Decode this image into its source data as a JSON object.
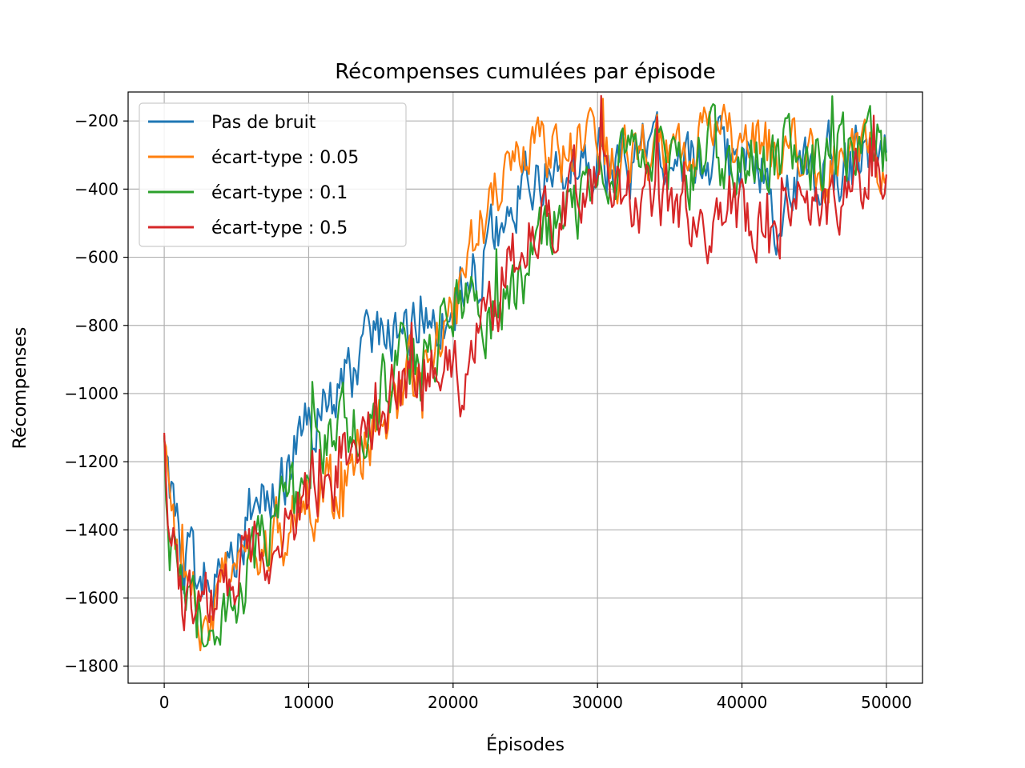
{
  "chart_data": {
    "type": "line",
    "title": "Récompenses cumulées par épisode",
    "xlabel": "Épisodes",
    "ylabel": "Récompenses",
    "xlim": [
      -2500,
      52500
    ],
    "ylim": [
      -1850,
      -115
    ],
    "xticks": [
      0,
      10000,
      20000,
      30000,
      40000,
      50000
    ],
    "xtick_labels": [
      "0",
      "10000",
      "20000",
      "30000",
      "40000",
      "50000"
    ],
    "yticks": [
      -1800,
      -1600,
      -1400,
      -1200,
      -1000,
      -800,
      -600,
      -400,
      -200
    ],
    "ytick_labels": [
      "−1800",
      "−1600",
      "−1400",
      "−1200",
      "−1000",
      "−800",
      "−600",
      "−400",
      "−200"
    ],
    "grid": true,
    "legend_position": "top-left",
    "series": [
      {
        "name": "Pas de bruit",
        "color": "#1f77b4",
        "noise": 85,
        "x": [
          0,
          300,
          800,
          1500,
          2500,
          3500,
          4500,
          6000,
          8000,
          9500,
          12000,
          14000,
          16000,
          18000,
          20000,
          22000,
          24000,
          26000,
          28000,
          30000,
          32000,
          35000,
          38000,
          40000,
          42000,
          42700,
          43500,
          45000,
          47000,
          50000
        ],
        "y": [
          -1180,
          -1300,
          -1400,
          -1500,
          -1560,
          -1560,
          -1450,
          -1330,
          -1250,
          -1150,
          -1000,
          -880,
          -820,
          -800,
          -740,
          -600,
          -450,
          -350,
          -340,
          -330,
          -320,
          -310,
          -330,
          -340,
          -340,
          -550,
          -360,
          -330,
          -320,
          -300
        ]
      },
      {
        "name": "écart-type : 0.05",
        "color": "#ff7f0e",
        "noise": 85,
        "x": [
          0,
          300,
          800,
          1500,
          2500,
          3500,
          5000,
          7000,
          9000,
          11000,
          13000,
          15000,
          17000,
          19000,
          20000,
          21000,
          22000,
          23000,
          24000,
          25000,
          27000,
          30000,
          33000,
          36000,
          40000,
          45000,
          48000,
          50000
        ],
        "y": [
          -1200,
          -1320,
          -1450,
          -1550,
          -1620,
          -1600,
          -1560,
          -1470,
          -1360,
          -1270,
          -1180,
          -1080,
          -960,
          -840,
          -760,
          -640,
          -500,
          -370,
          -330,
          -310,
          -300,
          -300,
          -300,
          -290,
          -300,
          -310,
          -320,
          -350
        ]
      },
      {
        "name": "écart-type : 0.1",
        "color": "#2ca02c",
        "noise": 90,
        "x": [
          0,
          300,
          800,
          1500,
          2500,
          3500,
          5000,
          7000,
          9000,
          11000,
          13000,
          15000,
          17000,
          19000,
          20000,
          21000,
          23000,
          24500,
          26000,
          28000,
          30000,
          32000,
          35000,
          40000,
          45000,
          48000,
          50000
        ],
        "y": [
          -1200,
          -1380,
          -1560,
          -1660,
          -1650,
          -1620,
          -1560,
          -1420,
          -1300,
          -1170,
          -1100,
          -1000,
          -900,
          -820,
          -760,
          -720,
          -760,
          -680,
          -560,
          -470,
          -380,
          -330,
          -320,
          -310,
          -300,
          -290,
          -300
        ]
      },
      {
        "name": "écart-type : 0.5",
        "color": "#d62728",
        "noise": 85,
        "x": [
          0,
          300,
          800,
          1500,
          2500,
          3500,
          5000,
          7000,
          9000,
          11000,
          13000,
          15000,
          17000,
          19000,
          20500,
          22000,
          24000,
          26000,
          28000,
          30000,
          32000,
          34000,
          36000,
          38000,
          40000,
          43000,
          46000,
          48000,
          50000
        ],
        "y": [
          -1200,
          -1350,
          -1520,
          -1620,
          -1640,
          -1600,
          -1530,
          -1440,
          -1340,
          -1250,
          -1160,
          -1060,
          -960,
          -910,
          -960,
          -820,
          -620,
          -480,
          -440,
          -400,
          -420,
          -430,
          -460,
          -480,
          -490,
          -480,
          -440,
          -380,
          -340
        ]
      }
    ]
  }
}
